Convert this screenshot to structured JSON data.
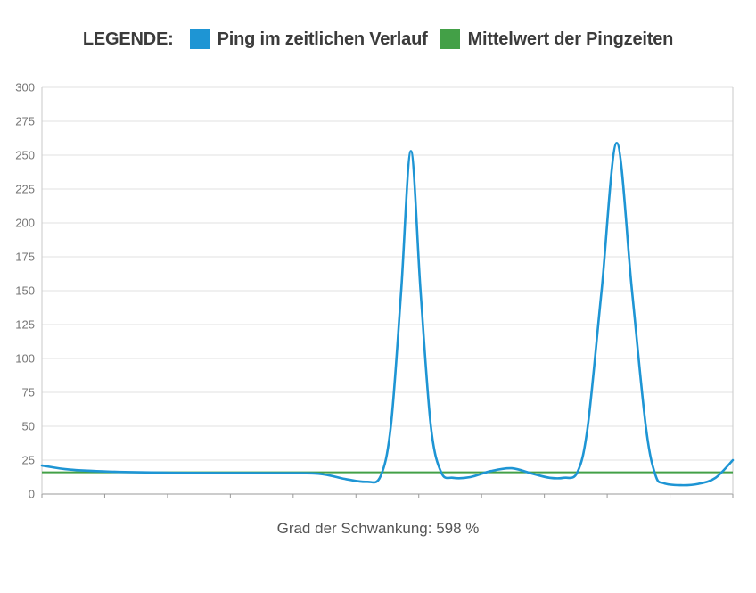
{
  "legend": {
    "title": "LEGENDE:",
    "items": [
      {
        "label": "Ping im zeitlichen Verlauf",
        "color": "#1e95d4"
      },
      {
        "label": "Mittelwert der Pingzeiten",
        "color": "#43a047"
      }
    ]
  },
  "caption": "Grad der Schwankung: 598 %",
  "colors": {
    "axis_text": "#767676",
    "grid": "#e2e2e2",
    "frame": "#c9c9c9",
    "axis_line": "#9a9a9a"
  },
  "chart_data": {
    "type": "line",
    "title": "",
    "xlabel": "",
    "ylabel": "",
    "ylim": [
      0,
      300
    ],
    "ytick_step": 25,
    "ytick_labels": [
      "0",
      "25",
      "50",
      "75",
      "100",
      "125",
      "150",
      "175",
      "200",
      "225",
      "250",
      "275",
      "300"
    ],
    "x_range": [
      0,
      100
    ],
    "x_tick_count": 12,
    "grid": true,
    "legend_position": "top",
    "annotation": "Grad der Schwankung: 598 %",
    "series": [
      {
        "name": "Ping im zeitlichen Verlauf",
        "color": "#1e95d4",
        "points": [
          [
            0,
            21
          ],
          [
            4,
            18
          ],
          [
            10,
            16.5
          ],
          [
            18,
            15.7
          ],
          [
            26,
            15.5
          ],
          [
            34,
            15.4
          ],
          [
            40,
            15
          ],
          [
            44,
            11
          ],
          [
            47,
            9
          ],
          [
            49,
            13
          ],
          [
            50.5,
            50
          ],
          [
            52,
            150
          ],
          [
            53.4,
            253
          ],
          [
            54.8,
            150
          ],
          [
            56.3,
            50
          ],
          [
            57.8,
            16
          ],
          [
            59.5,
            12
          ],
          [
            62,
            12.5
          ],
          [
            65,
            17
          ],
          [
            68,
            19
          ],
          [
            71,
            15
          ],
          [
            73.5,
            12
          ],
          [
            75.5,
            12
          ],
          [
            77.5,
            16
          ],
          [
            79,
            50
          ],
          [
            81,
            150
          ],
          [
            83.2,
            259
          ],
          [
            85.4,
            150
          ],
          [
            87.4,
            50
          ],
          [
            88.8,
            14
          ],
          [
            90,
            8
          ],
          [
            92.5,
            6.5
          ],
          [
            95,
            7.5
          ],
          [
            97.5,
            12
          ],
          [
            100,
            25
          ]
        ]
      },
      {
        "name": "Mittelwert der Pingzeiten",
        "color": "#43a047",
        "constant": 16
      }
    ]
  }
}
